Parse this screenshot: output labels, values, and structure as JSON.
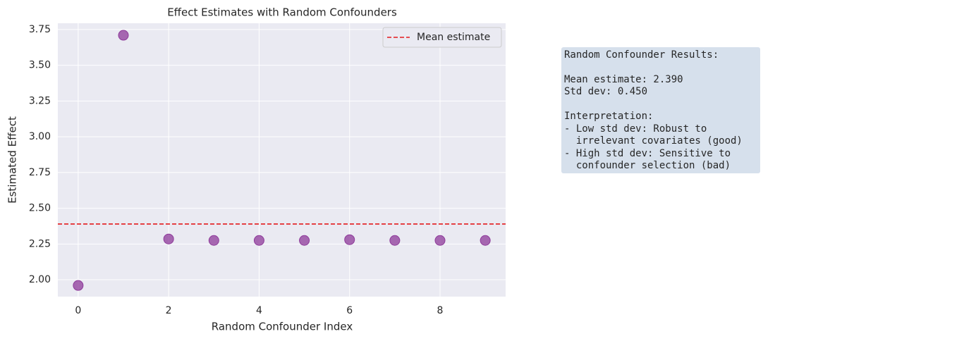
{
  "chart_data": {
    "type": "scatter",
    "title": "Effect Estimates with Random Confounders",
    "x_label": "Random Confounder Index",
    "y_label": "Estimated Effect",
    "x": [
      0,
      1,
      2,
      3,
      4,
      5,
      6,
      7,
      8,
      9
    ],
    "series": [
      {
        "color": "#8e3a9a",
        "values": [
          1.96,
          3.71,
          2.285,
          2.275,
          2.275,
          2.275,
          2.28,
          2.275,
          2.275,
          2.275
        ]
      }
    ],
    "mean_line": {
      "name": "Mean estimate",
      "value": 2.39,
      "color": "#e31a1c"
    },
    "xlim": [
      -0.45,
      9.45
    ],
    "xticks": [
      0,
      2,
      4,
      6,
      8
    ],
    "ylim": [
      1.882,
      3.794
    ],
    "yticks": [
      {
        "value": 2.0,
        "label": "2.00"
      },
      {
        "value": 2.25,
        "label": "2.25"
      },
      {
        "value": 2.5,
        "label": "2.50"
      },
      {
        "value": 2.75,
        "label": "2.75"
      },
      {
        "value": 3.0,
        "label": "3.00"
      },
      {
        "value": 3.25,
        "label": "3.25"
      },
      {
        "value": 3.5,
        "label": "3.50"
      },
      {
        "value": 3.75,
        "label": "3.75"
      }
    ],
    "grid": true,
    "legend": "upper right",
    "text_box": {
      "lines": [
        "Random Confounder Results:",
        "Mean estimate: 2.390",
        "Std dev: 0.450",
        "Interpretation:",
        "- Low std dev: Robust to",
        "  irrelevant covariates (good)",
        "- High std dev: Sensitive to",
        "  confounder selection (bad)"
      ]
    }
  }
}
